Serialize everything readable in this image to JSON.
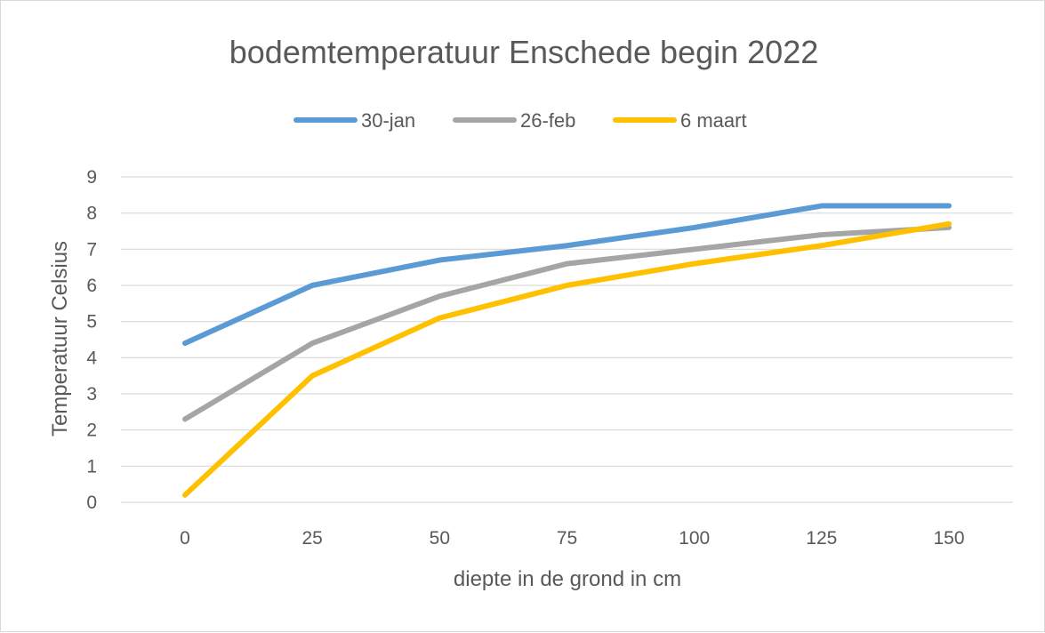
{
  "chart_data": {
    "type": "line",
    "title": "bodemtemperatuur Enschede begin 2022",
    "xlabel": "diepte in de grond in cm",
    "ylabel": "Temperatuur  Celsius",
    "x": [
      0,
      25,
      50,
      75,
      100,
      125,
      150
    ],
    "x_tick_labels": [
      "0",
      "25",
      "50",
      "75",
      "100",
      "125",
      "150"
    ],
    "y_tick_labels": [
      "0",
      "1",
      "2",
      "3",
      "4",
      "5",
      "6",
      "7",
      "8",
      "9"
    ],
    "ylim": [
      0,
      9
    ],
    "grid": true,
    "legend_position": "top",
    "series": [
      {
        "name": "30-jan",
        "color": "#5b9bd5",
        "values": [
          4.4,
          6.0,
          6.7,
          7.1,
          7.6,
          8.2,
          8.2
        ]
      },
      {
        "name": "26-feb",
        "color": "#a5a5a5",
        "values": [
          2.3,
          4.4,
          5.7,
          6.6,
          7.0,
          7.4,
          7.6
        ]
      },
      {
        "name": "6 maart",
        "color": "#ffc000",
        "values": [
          0.2,
          3.5,
          5.1,
          6.0,
          6.6,
          7.1,
          7.7
        ]
      }
    ]
  }
}
